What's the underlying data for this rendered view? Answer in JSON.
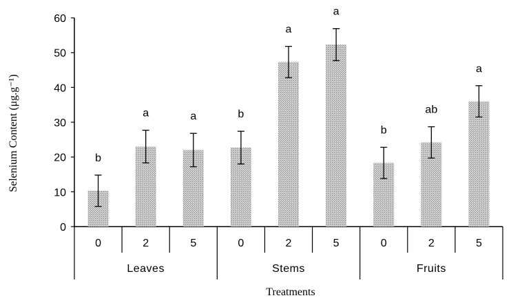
{
  "chart_data": {
    "type": "bar",
    "title": "",
    "xlabel": "Treatments",
    "ylabel": "Selenium Content (μg.g⁻¹)",
    "ylim": [
      0,
      60
    ],
    "yticks": [
      "0",
      "10",
      "20",
      "30",
      "40",
      "50",
      "60"
    ],
    "grid": false,
    "colors": {
      "bar_fill": "#c8c8c8",
      "bar_hatch": "#9a9a9a",
      "axis": "#000000"
    },
    "groups": [
      {
        "name": "Leaves",
        "categories": [
          "0",
          "2",
          "5"
        ],
        "values": [
          10.3,
          23.0,
          22.0
        ],
        "errors": [
          4.5,
          4.7,
          4.8
        ],
        "significance": [
          "b",
          "a",
          "a"
        ]
      },
      {
        "name": "Stems",
        "categories": [
          "0",
          "2",
          "5"
        ],
        "values": [
          22.7,
          47.3,
          52.3
        ],
        "errors": [
          4.7,
          4.5,
          4.6
        ],
        "significance": [
          "b",
          "a",
          "a"
        ]
      },
      {
        "name": "Fruits",
        "categories": [
          "0",
          "2",
          "5"
        ],
        "values": [
          18.3,
          24.2,
          36.0
        ],
        "errors": [
          4.5,
          4.5,
          4.5
        ],
        "significance": [
          "b",
          "ab",
          "a"
        ]
      }
    ]
  }
}
